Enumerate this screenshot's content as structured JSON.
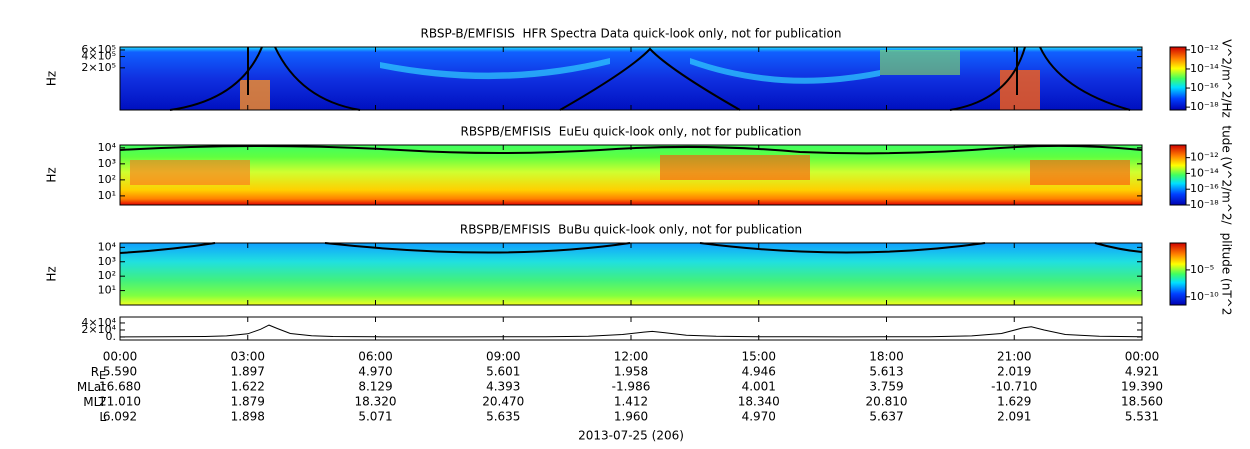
{
  "chart_data": [
    {
      "type": "spectrogram",
      "title": "RBSP-B/EMFISIS  HFR Spectra Data quick-look only, not for publication",
      "ylabel": "Hz",
      "ylog": true,
      "ylim": [
        15000,
        720000
      ],
      "yticks": [
        {
          "value": 200000,
          "label": "2×10⁵"
        },
        {
          "value": 400000,
          "label": "4×10⁵"
        },
        {
          "value": 600000,
          "label": "6×10⁵"
        }
      ],
      "colorbar": {
        "label": "V^2/m^2/Hz",
        "log": true,
        "lim": [
          5e-19,
          2e-12
        ],
        "ticks": [
          {
            "value": 1e-12,
            "label": "10⁻¹²"
          },
          {
            "value": 1e-14,
            "label": "10⁻¹⁴"
          },
          {
            "value": 1e-16,
            "label": "10⁻¹⁶"
          },
          {
            "value": 1e-18,
            "label": "10⁻¹⁸"
          }
        ]
      }
    },
    {
      "type": "spectrogram",
      "title": "RBSPB/EMFISIS  EuEu quick-look only, not for publication",
      "ylabel": "Hz",
      "ylog": true,
      "ylim": [
        2.7,
        15000
      ],
      "yticks": [
        {
          "value": 10,
          "label": "10¹"
        },
        {
          "value": 100,
          "label": "10²"
        },
        {
          "value": 1000,
          "label": "10³"
        },
        {
          "value": 10000,
          "label": "10⁴"
        }
      ],
      "colorbar": {
        "label": "tude (V^2/m^2/",
        "log": true,
        "lim": [
          1e-18,
          4e-11
        ],
        "ticks": [
          {
            "value": 1e-12,
            "label": "10⁻¹²"
          },
          {
            "value": 1e-14,
            "label": "10⁻¹⁴"
          },
          {
            "value": 1e-16,
            "label": "10⁻¹⁶"
          },
          {
            "value": 1e-18,
            "label": "10⁻¹⁸"
          }
        ]
      }
    },
    {
      "type": "spectrogram",
      "title": "RBSPB/EMFISIS  BuBu quick-look only, not for publication",
      "ylabel": "Hz",
      "ylog": true,
      "ylim": [
        1,
        20000
      ],
      "yticks": [
        {
          "value": 10,
          "label": "10¹"
        },
        {
          "value": 100,
          "label": "10²"
        },
        {
          "value": 1000,
          "label": "10³"
        },
        {
          "value": 10000,
          "label": "10⁴"
        }
      ],
      "colorbar": {
        "label": "plitude (nT^2",
        "log": true,
        "lim": [
          3e-12,
          1
        ],
        "ticks": [
          {
            "value": 1e-05,
            "label": "10⁻⁵"
          },
          {
            "value": 1e-10,
            "label": "10⁻¹⁰"
          }
        ]
      }
    },
    {
      "type": "line",
      "color": "#000000",
      "xlim": [
        0,
        24
      ],
      "ylim": [
        -8600,
        57000
      ],
      "yticks": [
        {
          "value": 0,
          "label": "0."
        },
        {
          "value": 20000,
          "label": "2×10⁴"
        },
        {
          "value": 40000,
          "label": "4×10⁴"
        }
      ],
      "xticks": [
        {
          "value": 0,
          "label": "00:00"
        },
        {
          "value": 3,
          "label": "03:00"
        },
        {
          "value": 6,
          "label": "06:00"
        },
        {
          "value": 9,
          "label": "09:00"
        },
        {
          "value": 12,
          "label": "12:00"
        },
        {
          "value": 15,
          "label": "15:00"
        },
        {
          "value": 18,
          "label": "18:00"
        },
        {
          "value": 21,
          "label": "21:00"
        },
        {
          "value": 24,
          "label": "00:00"
        }
      ],
      "x": [
        0,
        1,
        2,
        2.5,
        3,
        3.3,
        3.5,
        3.7,
        4,
        4.5,
        5,
        6,
        7,
        8,
        9,
        10,
        11,
        11.8,
        12.3,
        12.5,
        12.8,
        13.3,
        14,
        15,
        16,
        17,
        18,
        19,
        20,
        20.7,
        21.2,
        21.4,
        21.7,
        22.2,
        23,
        24
      ],
      "values": [
        300,
        500,
        1500,
        3000,
        9000,
        22000,
        34000,
        24000,
        10000,
        3500,
        1500,
        600,
        300,
        300,
        400,
        800,
        2000,
        7000,
        14000,
        16000,
        12000,
        5000,
        2000,
        700,
        400,
        300,
        400,
        900,
        3000,
        10000,
        26000,
        29000,
        20000,
        7000,
        2000,
        600
      ]
    }
  ],
  "ephemeris": {
    "rows": [
      {
        "label": "R",
        "sub": "E",
        "values": [
          "5.590",
          "1.897",
          "4.970",
          "5.601",
          "1.958",
          "4.946",
          "5.613",
          "2.019",
          "4.921"
        ]
      },
      {
        "label": "MLat",
        "values": [
          "16.680",
          "1.622",
          "8.129",
          "4.393",
          "-1.986",
          "4.001",
          "3.759",
          "-10.710",
          "19.390"
        ]
      },
      {
        "label": "MLT",
        "values": [
          "21.010",
          "1.879",
          "18.320",
          "20.470",
          "1.412",
          "18.340",
          "20.810",
          "1.629",
          "18.560"
        ]
      },
      {
        "label": "L",
        "values": [
          "6.092",
          "1.898",
          "5.071",
          "5.635",
          "1.960",
          "4.970",
          "5.637",
          "2.091",
          "5.531"
        ]
      }
    ]
  },
  "date_label": "2013-07-25 (206)"
}
